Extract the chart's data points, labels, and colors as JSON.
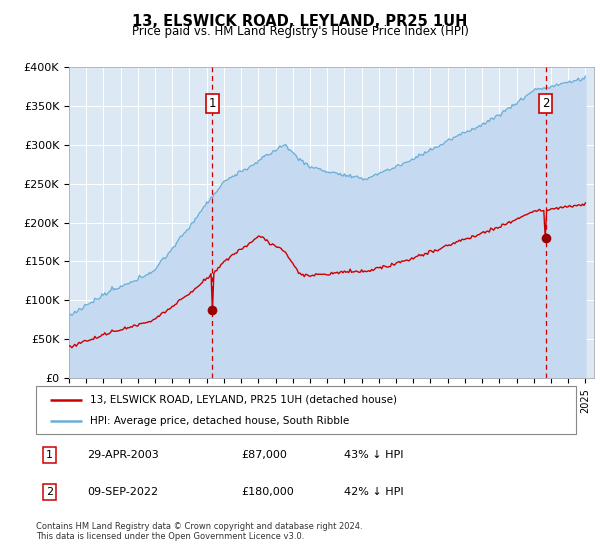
{
  "title": "13, ELSWICK ROAD, LEYLAND, PR25 1UH",
  "subtitle": "Price paid vs. HM Land Registry's House Price Index (HPI)",
  "footer": "Contains HM Land Registry data © Crown copyright and database right 2024.\nThis data is licensed under the Open Government Licence v3.0.",
  "legend_line1": "13, ELSWICK ROAD, LEYLAND, PR25 1UH (detached house)",
  "legend_line2": "HPI: Average price, detached house, South Ribble",
  "annotation1_date": "29-APR-2003",
  "annotation1_price": "£87,000",
  "annotation1_pct": "43% ↓ HPI",
  "annotation1_year": 2003.33,
  "annotation1_value": 87000,
  "annotation2_date": "09-SEP-2022",
  "annotation2_price": "£180,000",
  "annotation2_pct": "42% ↓ HPI",
  "annotation2_year": 2022.69,
  "annotation2_value": 180000,
  "ylim": [
    0,
    400000
  ],
  "yticks": [
    0,
    50000,
    100000,
    150000,
    200000,
    250000,
    300000,
    350000,
    400000
  ],
  "ytick_labels": [
    "£0",
    "£50K",
    "£100K",
    "£150K",
    "£200K",
    "£250K",
    "£300K",
    "£350K",
    "£400K"
  ],
  "xlim_start": 1995.0,
  "xlim_end": 2025.5,
  "hpi_fill_color": "#c5d9f0",
  "hpi_line_color": "#6baed6",
  "price_color": "#cc0000",
  "marker_color": "#990000",
  "vline_color": "#cc0000",
  "plot_bg": "#dce9f5",
  "grid_color": "#ffffff",
  "box_edge_color": "#cc0000"
}
